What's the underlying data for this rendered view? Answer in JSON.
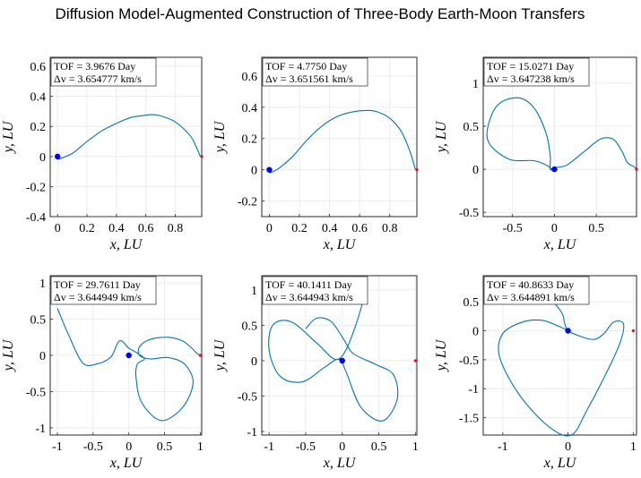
{
  "title": "Diffusion Model-Augmented Construction of Three-Body Earth-Moon Transfers",
  "colors": {
    "trajectory": "#0072BD",
    "start_marker": "#0000FF",
    "end_marker": "#FF0000"
  },
  "chart_data": [
    {
      "type": "line",
      "annotation": [
        "TOF = 3.9676 Day",
        "Δv = 3.654777 km/s"
      ],
      "xlabel": "x, LU",
      "ylabel": "y, LU",
      "xlim": [
        -0.05,
        0.98
      ],
      "ylim": [
        -0.4,
        0.66
      ],
      "xticks": [
        0,
        0.2,
        0.4,
        0.6,
        0.8
      ],
      "yticks": [
        -0.4,
        -0.2,
        0,
        0.2,
        0.4,
        0.6
      ],
      "x": [
        0,
        0.1,
        0.2,
        0.3,
        0.4,
        0.5,
        0.6,
        0.65,
        0.7,
        0.8,
        0.9,
        0.94,
        0.97
      ],
      "y": [
        -0.02,
        0.02,
        0.1,
        0.17,
        0.22,
        0.26,
        0.275,
        0.278,
        0.27,
        0.23,
        0.14,
        0.07,
        0.0
      ],
      "start_point": [
        0,
        0
      ],
      "end_point": [
        0.98,
        0
      ]
    },
    {
      "type": "line",
      "annotation": [
        "TOF = 4.7750 Day",
        "Δv = 3.651561 km/s"
      ],
      "xlabel": "x, LU",
      "ylabel": "y, LU",
      "xlim": [
        -0.05,
        0.98
      ],
      "ylim": [
        -0.3,
        0.72
      ],
      "xticks": [
        0,
        0.2,
        0.4,
        0.6,
        0.8
      ],
      "yticks": [
        -0.2,
        0,
        0.2,
        0.4,
        0.6
      ],
      "x": [
        0,
        0.05,
        0.15,
        0.25,
        0.35,
        0.45,
        0.55,
        0.65,
        0.72,
        0.8,
        0.88,
        0.94,
        0.97
      ],
      "y": [
        -0.02,
        0.0,
        0.08,
        0.19,
        0.28,
        0.34,
        0.37,
        0.38,
        0.37,
        0.33,
        0.24,
        0.1,
        0.0
      ],
      "start_point": [
        0,
        0
      ],
      "end_point": [
        0.98,
        0
      ]
    },
    {
      "type": "line",
      "annotation": [
        "TOF = 15.0271 Day",
        "Δv = 3.647238 km/s"
      ],
      "xlabel": "x, LU",
      "ylabel": "y, LU",
      "xlim": [
        -0.85,
        0.98
      ],
      "ylim": [
        -0.55,
        1.3
      ],
      "xticks": [
        -0.5,
        0,
        0.5
      ],
      "yticks": [
        -0.5,
        0,
        0.5,
        1
      ],
      "x": [
        -0.03,
        -0.1,
        -0.25,
        -0.55,
        -0.8,
        -0.7,
        -0.45,
        -0.25,
        -0.1,
        -0.05,
        -0.05,
        0.02,
        0.15,
        0.35,
        0.55,
        0.7,
        0.8,
        0.87,
        0.95,
        0.98
      ],
      "y": [
        0.0,
        0.05,
        0.1,
        0.12,
        0.35,
        0.72,
        0.83,
        0.72,
        0.42,
        0.15,
        0.0,
        0.02,
        0.05,
        0.2,
        0.35,
        0.35,
        0.22,
        0.08,
        0.03,
        0.0
      ],
      "start_point": [
        0,
        0
      ],
      "end_point": [
        0.98,
        0
      ]
    },
    {
      "type": "line",
      "annotation": [
        "TOF = 29.7611 Day",
        "Δv = 3.644949 km/s"
      ],
      "xlabel": "x, LU",
      "ylabel": "y, LU",
      "xlim": [
        -1.1,
        1.02
      ],
      "ylim": [
        -1.1,
        1.1
      ],
      "xticks": [
        -1,
        -0.5,
        0,
        0.5,
        1
      ],
      "yticks": [
        -1,
        -0.5,
        0,
        0.5,
        1
      ],
      "x": [
        -1.0,
        -0.85,
        -0.65,
        -0.45,
        -0.25,
        -0.13,
        0.0,
        0.12,
        0.22,
        0.12,
        0.1,
        0.18,
        0.45,
        0.75,
        0.9,
        0.78,
        0.55,
        0.3,
        0.15,
        0.15,
        0.3,
        0.55,
        0.75,
        0.88,
        0.95,
        1.0
      ],
      "y": [
        0.65,
        0.3,
        -0.1,
        -0.12,
        -0.02,
        0.2,
        0.1,
        0.03,
        -0.05,
        -0.12,
        -0.3,
        -0.65,
        -0.9,
        -0.72,
        -0.38,
        -0.12,
        -0.03,
        -0.05,
        0.0,
        0.12,
        0.22,
        0.25,
        0.2,
        0.1,
        0.03,
        0.0
      ],
      "start_point": [
        0,
        0
      ],
      "end_point": [
        1,
        0
      ]
    },
    {
      "type": "line",
      "annotation": [
        "TOF = 40.1411 Day",
        "Δv = 3.644943 km/s"
      ],
      "xlabel": "x, LU",
      "ylabel": "y, LU",
      "xlim": [
        -1.1,
        1.02
      ],
      "ylim": [
        -1.05,
        1.2
      ],
      "xticks": [
        -1,
        -0.5,
        0,
        0.5,
        1
      ],
      "yticks": [
        -1,
        -0.5,
        0,
        0.5,
        1
      ],
      "x": [
        0.3,
        0.2,
        0.05,
        -0.1,
        -0.35,
        -0.7,
        -0.95,
        -1.0,
        -0.85,
        -0.55,
        -0.25,
        -0.05,
        0.05,
        0.25,
        0.55,
        0.75,
        0.7,
        0.45,
        0.15,
        0.02,
        -0.15,
        -0.35,
        -0.5
      ],
      "y": [
        0.9,
        0.55,
        0.15,
        0.02,
        0.25,
        0.55,
        0.5,
        0.15,
        -0.22,
        -0.3,
        -0.1,
        0.02,
        -0.15,
        -0.65,
        -0.85,
        -0.55,
        -0.2,
        -0.05,
        0.1,
        0.3,
        0.55,
        0.6,
        0.45
      ],
      "start_point": [
        0,
        0
      ],
      "end_point": [
        1,
        0
      ]
    },
    {
      "type": "line",
      "annotation": [
        "TOF = 40.8633 Day",
        "Δv = 3.644891 km/s"
      ],
      "xlabel": "x, LU",
      "ylabel": "y, LU",
      "xlim": [
        -1.3,
        1.05
      ],
      "ylim": [
        -1.8,
        0.95
      ],
      "xticks": [
        -1,
        0,
        1
      ],
      "yticks": [
        -1.5,
        -1,
        -0.5,
        0,
        0.5
      ],
      "x": [
        -0.65,
        -0.3,
        -0.1,
        -0.05,
        0.0,
        0.2,
        0.4,
        0.55,
        0.7,
        0.85,
        0.8,
        0.6,
        0.3,
        0.05,
        -0.3,
        -0.75,
        -1.05,
        -1.0,
        -0.7,
        -0.4,
        -0.15,
        0.0
      ],
      "y": [
        0.65,
        0.55,
        0.32,
        0.12,
        0.0,
        -0.1,
        -0.15,
        -0.05,
        0.15,
        0.12,
        -0.2,
        -0.7,
        -1.35,
        -1.8,
        -1.65,
        -1.1,
        -0.45,
        -0.05,
        0.15,
        0.18,
        0.08,
        0.0
      ],
      "start_point": [
        0,
        0
      ],
      "end_point": [
        1,
        0
      ]
    }
  ]
}
